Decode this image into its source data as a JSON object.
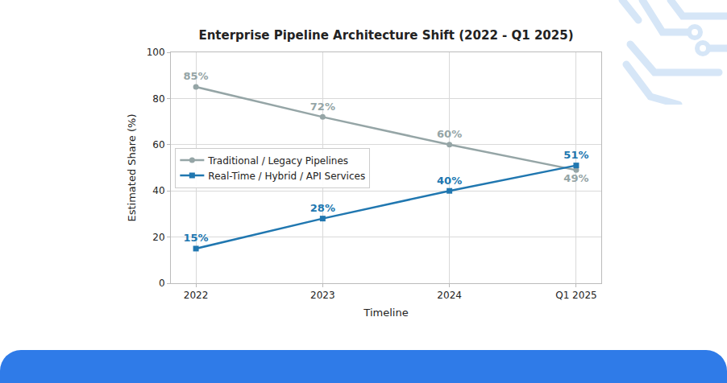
{
  "chart_data": {
    "type": "line",
    "title": "Enterprise Pipeline Architecture Shift (2022 - Q1 2025)",
    "x_label": "Timeline",
    "y_label": "Estimated Share (%)",
    "categories": [
      "2022",
      "2023",
      "2024",
      "Q1 2025"
    ],
    "series": [
      {
        "name": "Traditional / Legacy Pipelines",
        "color": "#95a5a6",
        "marker": "circle",
        "values": [
          85,
          72,
          60,
          49
        ],
        "value_labels": [
          "85%",
          "72%",
          "60%",
          "49%"
        ]
      },
      {
        "name": "Real-Time / Hybrid / API Services",
        "color": "#2077b0",
        "marker": "square",
        "values": [
          15,
          28,
          40,
          51
        ],
        "value_labels": [
          "15%",
          "28%",
          "40%",
          "51%"
        ]
      }
    ],
    "ylim": [
      0,
      100
    ],
    "yticks": [
      0,
      20,
      40,
      60,
      80,
      100
    ],
    "grid": true,
    "legend": "center left",
    "data_labels": true
  }
}
